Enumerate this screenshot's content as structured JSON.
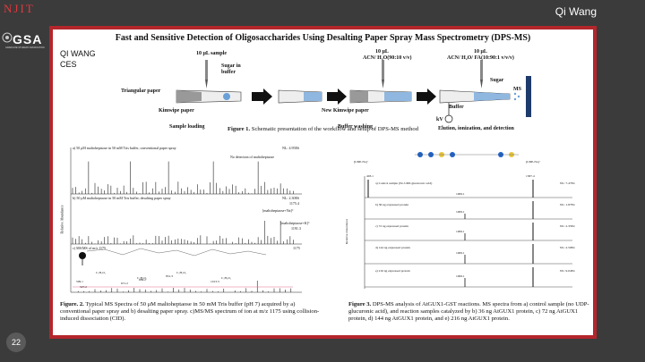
{
  "slide": {
    "logo_text": "NJIT",
    "gsa_text": "GSA",
    "gsa_subtext": "GRADUATE STUDENT ASSOCIATION",
    "presenter": "Qi Wang",
    "slide_number": "22"
  },
  "poster": {
    "title": "Fast and Sensitive Detection of Oligosaccharides Using Desalting Paper Spray Mass Spectrometry (DPS-MS)",
    "author_name": "QI WANG",
    "author_dept": "CES",
    "schematic": {
      "reagent_1": "10 μL sample",
      "reagent_2": "10 μL",
      "reagent_2b": "ACN/ H₂O(90:10 v/v)",
      "reagent_3": "10 μL",
      "reagent_3b": "ACN/ H₂O/ FA(10:90:1 v/v/v)",
      "sugar_label_1": "Sugar in buffer",
      "sugar_label_2": "Sugar",
      "buffer_label": "Buffer",
      "triangular_paper": "Triangular paper",
      "kimwipe": "Kimwipe paper",
      "new_kimwipe": "New Kimwipe paper",
      "ms_label": "MS",
      "kv_label": "kV",
      "step_1": "Sample loading",
      "step_2": "Buffer washing",
      "step_3": "Elution, ionization, and detection"
    },
    "figure1_caption_bold": "Figure 1.",
    "figure1_caption": "Schematic presentation of the workflow and setup of DPS-MS method",
    "fig2": {
      "panel_a": "a) 50 μM maltoheptaose in 50 mM Tris buffer, conventional paper spray",
      "panel_a_ne": "NL: 4.95E6",
      "panel_a_note": "No detection of maltoheptaose",
      "panel_b": "b) 50 μM maltoheptaose in 50 mM Tris buffer, desalting paper spray",
      "panel_b_ne": "NL: 2.30E6",
      "panel_b_peak": "1175.4",
      "panel_b_ion1": "[maltoheptaose+Na]⁺",
      "panel_b_ion2": "[maltoheptaose+K]⁺",
      "panel_b_peak2": "1191.3",
      "panel_c": "c) MS/MS of m/z 1175",
      "panel_c_ne": "1175",
      "ylabel": "Relative Abundance",
      "peaks_c": [
        "509.1",
        "671.2",
        "689.2",
        "851.3",
        "1013.3",
        "527.2"
      ],
      "annotations_c": [
        "C₂H₄O₂",
        "C₃H₆O₃",
        "C₂H₄O₂",
        "C₃H₆O₃"
      ]
    },
    "figure2_caption_bold": "Figure. 2.",
    "figure2_caption": "Typical MS Spectra of 50 μM maltoheptaose in 50 mM Tris buffer (pH 7) acquired by a) conventional paper spray and b) desalting paper spray. c)MS/MS spectrum of ion at m/z 1175 using collision-induced dissociation (CID).",
    "fig3": {
      "head_left": "[UDP-Na]⁻",
      "head_right": "[UDP-Na]⁻",
      "panels": [
        {
          "label": "a) Control sample (No UDP-glucuronic acid)",
          "nl": "NL: 7.47E4",
          "peak": "1009.1"
        },
        {
          "label": "b) 36 ng expressed protein",
          "nl": "NL: 1.87E4",
          "peak": "1009.1"
        },
        {
          "label": "c) 72 ng expressed protein",
          "nl": "NL: 2.35E4",
          "peak": "1009.1"
        },
        {
          "label": "d) 144 ng expressed protein",
          "nl": "NL: 2.59E4",
          "peak": "1009.1"
        },
        {
          "label": "e) 216 ng expressed protein",
          "nl": "NL: 9.04E4",
          "peak": "1009.1"
        }
      ],
      "ylabel": "Relative Abundance",
      "left_peak": "403.1",
      "right_peak": "1587.4"
    },
    "figure3_caption_bold": "Figure 3.",
    "figure3_caption": "DPS-MS analysis of AtGUX1-GST reactions. MS spectra from a) control sample (no UDP-glucuronic acid), and reaction samples catalyzed by b) 36 ng AtGUX1 protein, c) 72 ng AtGUX1 protein, d) 144 ng AtGUX1 protein, and e) 216 ng AtGUX1 protein.",
    "colors": {
      "border": "#b3262b",
      "bg": "#3b3b3b",
      "logo": "#e0393e"
    }
  }
}
